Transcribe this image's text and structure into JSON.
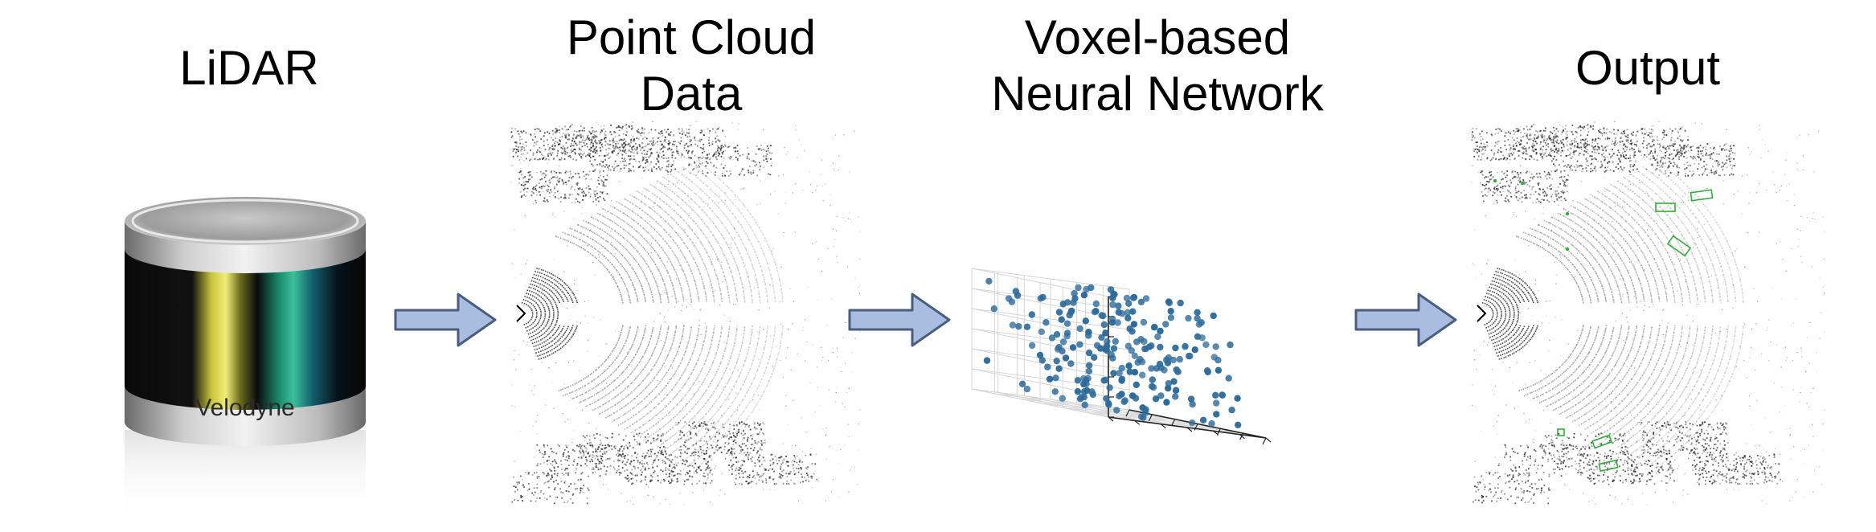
{
  "stages": [
    {
      "title_lines": [
        "LiDAR"
      ]
    },
    {
      "title_lines": [
        "Point Cloud",
        "Data"
      ]
    },
    {
      "title_lines": [
        "Voxel-based",
        "Neural Network"
      ]
    },
    {
      "title_lines": [
        "Output"
      ]
    }
  ],
  "lidar_brand": "Velodyne",
  "colors": {
    "arrow_fill": "#a9bde0",
    "arrow_stroke": "#4a5d7e",
    "scatter_point": "#2e6b9a",
    "box_outline": "#2fae3a",
    "cloud_point": "#2b2b2b"
  },
  "icons": [
    "velodyne-lidar-sensor",
    "point-cloud-birdseye",
    "3d-voxel-scatter",
    "detection-output-birdseye"
  ]
}
